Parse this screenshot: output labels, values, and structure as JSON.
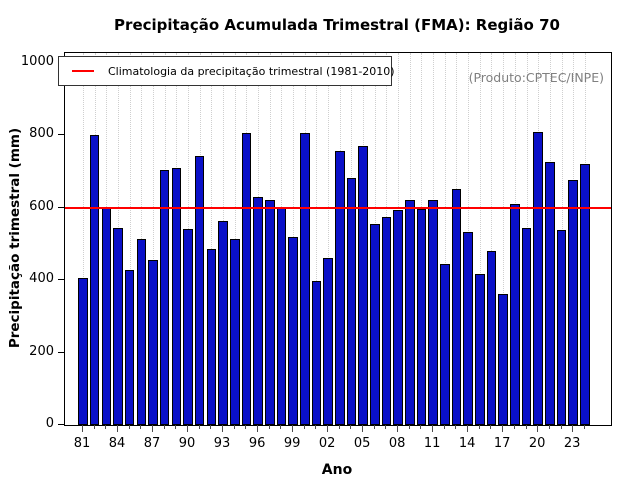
{
  "title": "Precipitação Acumulada Trimestral (FMA): Região 70",
  "legend": {
    "label": "Climatologia da precipitação trimestral (1981-2010)"
  },
  "annotation": "(Produto:CPTEC/INPE)",
  "colors": {
    "bar": "#0a10c8",
    "bar_border": "#000000",
    "climatology_line": "#ff0000",
    "gridline": "#cfcfcf",
    "annotation_text": "#808080"
  },
  "chart_data": {
    "type": "bar",
    "title": "Precipitação Acumulada Trimestral (FMA): Região 70",
    "xlabel": "Ano",
    "ylabel": "Precipitação trimestral (mm)",
    "ylim": [
      0,
      1000
    ],
    "y_ticks": [
      0,
      200,
      400,
      600,
      800,
      1000
    ],
    "x_tick_labels": [
      "81",
      "84",
      "87",
      "90",
      "93",
      "96",
      "99",
      "02",
      "05",
      "08",
      "11",
      "14",
      "17",
      "20",
      "23"
    ],
    "x_label_every_years": 3,
    "grid": "dotted vertical line at each bar",
    "legend_entries": [
      "Climatologia da precipitação trimestral (1981-2010)"
    ],
    "legend_position": "top-left",
    "climatology_value": 603,
    "years": [
      1981,
      1982,
      1983,
      1984,
      1985,
      1986,
      1987,
      1988,
      1989,
      1990,
      1991,
      1992,
      1993,
      1994,
      1995,
      1996,
      1997,
      1998,
      1999,
      2000,
      2001,
      2002,
      2003,
      2004,
      2005,
      2006,
      2007,
      2008,
      2009,
      2010,
      2011,
      2012,
      2013,
      2014,
      2015,
      2016,
      2017,
      2018,
      2019,
      2020,
      2021,
      2022,
      2023,
      2024
    ],
    "values": [
      405,
      801,
      600,
      544,
      429,
      514,
      455,
      704,
      710,
      541,
      744,
      486,
      562,
      514,
      806,
      630,
      621,
      601,
      519,
      806,
      397,
      461,
      757,
      683,
      771,
      555,
      575,
      594,
      620,
      597,
      620,
      445,
      652,
      534,
      418,
      481,
      362,
      610,
      544,
      809,
      726,
      539,
      677,
      721
    ]
  }
}
